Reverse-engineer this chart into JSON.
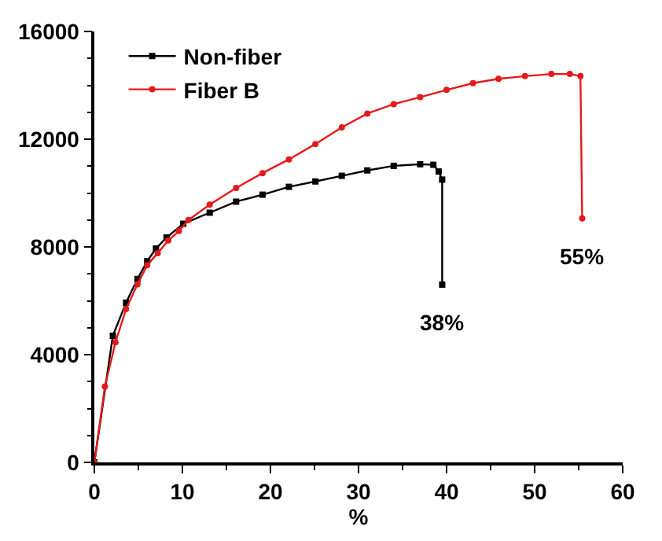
{
  "chart_data": {
    "type": "line",
    "xlabel": "%",
    "series": [
      {
        "name": "Non-fiber",
        "color": "#000000",
        "marker": "square",
        "x": [
          0,
          2.1,
          3.6,
          4.9,
          6.0,
          7.0,
          8.2,
          10.1,
          13.1,
          16.1,
          19.1,
          22.1,
          25.1,
          28.1,
          31.0,
          34.0,
          37.0,
          38.5,
          39.1,
          39.5,
          39.5
        ],
        "values": [
          0,
          4700,
          5930,
          6810,
          7470,
          7940,
          8350,
          8860,
          9270,
          9680,
          9940,
          10230,
          10430,
          10640,
          10840,
          11010,
          11070,
          11050,
          10800,
          10500,
          6600
        ]
      },
      {
        "name": "Fiber B",
        "color": "#e41a1c",
        "marker": "circle",
        "x": [
          0,
          1.2,
          2.4,
          3.6,
          4.9,
          6.0,
          7.2,
          8.4,
          9.6,
          10.7,
          13.1,
          16.1,
          19.1,
          22.1,
          25.1,
          28.1,
          31.0,
          34.0,
          37.0,
          40.0,
          43.0,
          45.9,
          48.9,
          51.9,
          54.0,
          55.2,
          55.4
        ],
        "values": [
          0,
          2820,
          4460,
          5690,
          6610,
          7320,
          7770,
          8240,
          8590,
          9000,
          9570,
          10190,
          10740,
          11250,
          11820,
          12440,
          12950,
          13300,
          13560,
          13830,
          14080,
          14240,
          14340,
          14420,
          14420,
          14340,
          9060
        ]
      }
    ],
    "xlim": [
      0,
      60
    ],
    "xticks": [
      0,
      10,
      20,
      30,
      40,
      50,
      60
    ],
    "ylim": [
      0,
      16000
    ],
    "yticks": [
      0,
      4000,
      8000,
      12000,
      16000
    ],
    "legend": "top left",
    "annotations": [
      {
        "text": "38%",
        "x": 39.5,
        "y": 6600
      },
      {
        "text": "55%",
        "x": 55.4,
        "y": 9060
      }
    ]
  }
}
